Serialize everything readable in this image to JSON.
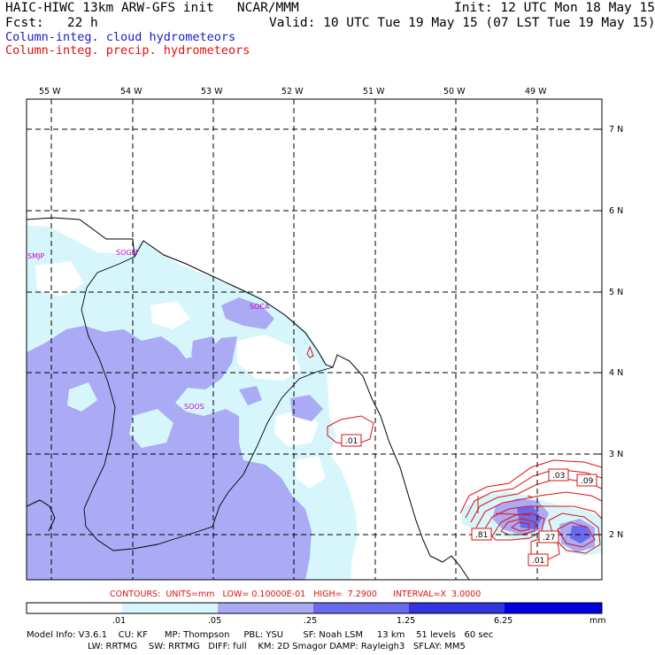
{
  "header": {
    "model_line": "HAIC-HIWC 13km ARW-GFS init   NCAR/MMM",
    "init": "Init: 12 UTC Mon 18 May 15",
    "fcst": "Fcst:   22 h",
    "valid": "Valid: 10 UTC Tue 19 May 15 (07 LST Tue 19 May 15)",
    "field_cloud": "Column-integ. cloud hydrometeors",
    "field_precip": "Column-integ. precip. hydrometeors"
  },
  "map": {
    "lon_labels": [
      "55 W",
      "54 W",
      "53 W",
      "52 W",
      "51 W",
      "50 W",
      "49 W"
    ],
    "lat_labels": [
      "7 N",
      "6 N",
      "5 N",
      "4 N",
      "3 N",
      "2 N"
    ],
    "stations": [
      "SMJP",
      "SOGM",
      "SOCA",
      "SOOS"
    ],
    "contour_labels": [
      ".01",
      ".03",
      ".09",
      ".81",
      ".27",
      ".01"
    ]
  },
  "colors": {
    "cloud_light": "#d6f6fc",
    "cloud_mid": "#aaaaf5",
    "cloud_strong": "#6a6aef",
    "cloud_dark": "#3232e0",
    "cloud_max": "#0000e0",
    "precip_contour": "#e01010",
    "station_label": "#d000d0"
  },
  "colorbar": {
    "contours_line": "CONTOURS:  UNITS=mm   LOW= 0.10000E-01   HIGH=  7.2900      INTERVAL=X  3.0000",
    "ticks": [
      ".01",
      ".05",
      ".25",
      "1.25",
      "6.25"
    ],
    "unit": "mm"
  },
  "footer": {
    "line1": "Model Info: V3.6.1    CU: KF      MP: Thompson     PBL: YSU       SF: Noah LSM     13 km    51 levels   60 sec",
    "line2": "LW: RRTMG    SW: RRTMG   DIFF: full    KM: 2D Smagor DAMP: Rayleigh3   SFLAY: MM5"
  }
}
